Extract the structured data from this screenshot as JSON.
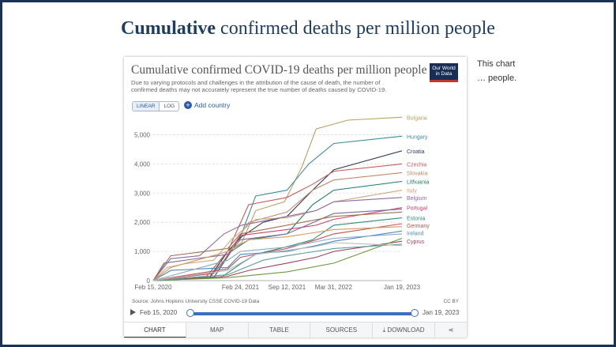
{
  "page": {
    "title_bold": "Cumulative",
    "title_rest": " confirmed deaths per million people",
    "side_text": "This chart … people."
  },
  "card": {
    "title": "Cumulative confirmed COVID-19 deaths per million people",
    "subtitle": "Due to varying protocols and challenges in the attribution of the cause of death, the number of confirmed deaths may not accurately represent the true number of deaths caused by COVID-19.",
    "logo": "Our World in Data",
    "scale_linear": "LINEAR",
    "scale_log": "LOG",
    "add_country": "Add country",
    "source": "Source: Johns Hopkins University CSSE COVID-19 Data",
    "license": "CC BY",
    "timeline_start": "Feb 15, 2020",
    "timeline_end": "Jan 19, 2023",
    "tabs": [
      "CHART",
      "MAP",
      "TABLE",
      "SOURCES",
      "DOWNLOAD",
      "share"
    ]
  },
  "colors": {
    "accent": "#3b6fc4",
    "title": "#1d3d63",
    "frame": "#1c3158"
  },
  "chart_data": {
    "type": "line",
    "title": "Cumulative confirmed COVID-19 deaths per million people",
    "xlabel": "",
    "ylabel": "",
    "ylim": [
      0,
      5500
    ],
    "yticks": [
      0,
      1000,
      2000,
      3000,
      4000,
      5000
    ],
    "ytick_labels": [
      "0",
      "1,000",
      "2,000",
      "3,000",
      "4,000",
      "5,000"
    ],
    "xlim": [
      "2020-02-15",
      "2023-01-19"
    ],
    "xticks": [
      "2020-02-15",
      "2021-02-24",
      "2021-09-12",
      "2022-03-31",
      "2023-01-19"
    ],
    "xtick_labels": [
      "Feb 15, 2020",
      "Feb 24, 2021",
      "Sep 12, 2021",
      "Mar 31, 2022",
      "Jan 19, 2023"
    ],
    "grid": true,
    "series": [
      {
        "name": "Bulgaria",
        "color": "#b8a25e",
        "points": [
          [
            "2020-02-15",
            0
          ],
          [
            "2020-10-15",
            150
          ],
          [
            "2020-12-31",
            1000
          ],
          [
            "2021-03-01",
            1300
          ],
          [
            "2021-05-01",
            2400
          ],
          [
            "2021-09-01",
            2700
          ],
          [
            "2021-11-15",
            3900
          ],
          [
            "2022-01-15",
            5200
          ],
          [
            "2022-06-01",
            5500
          ],
          [
            "2023-01-19",
            5600
          ]
        ]
      },
      {
        "name": "Hungary",
        "color": "#3b8d9b",
        "points": [
          [
            "2020-02-15",
            0
          ],
          [
            "2020-10-01",
            150
          ],
          [
            "2020-12-31",
            1000
          ],
          [
            "2021-02-24",
            1500
          ],
          [
            "2021-04-30",
            2900
          ],
          [
            "2021-09-12",
            3100
          ],
          [
            "2021-12-15",
            4000
          ],
          [
            "2022-04-01",
            4700
          ],
          [
            "2023-01-19",
            4950
          ]
        ]
      },
      {
        "name": "Croatia",
        "color": "#2c3e50",
        "points": [
          [
            "2020-02-15",
            0
          ],
          [
            "2020-10-15",
            100
          ],
          [
            "2020-12-31",
            1000
          ],
          [
            "2021-03-01",
            1500
          ],
          [
            "2021-06-01",
            2000
          ],
          [
            "2021-09-12",
            2200
          ],
          [
            "2021-12-31",
            3100
          ],
          [
            "2022-04-01",
            3800
          ],
          [
            "2023-01-19",
            4450
          ]
        ]
      },
      {
        "name": "Czechia",
        "color": "#c65b5b",
        "points": [
          [
            "2020-02-15",
            0
          ],
          [
            "2020-10-01",
            150
          ],
          [
            "2020-12-31",
            1000
          ],
          [
            "2021-03-31",
            2600
          ],
          [
            "2021-09-12",
            2850
          ],
          [
            "2021-12-31",
            3300
          ],
          [
            "2022-04-01",
            3750
          ],
          [
            "2023-01-19",
            4000
          ]
        ]
      },
      {
        "name": "Slovakia",
        "color": "#c4896d",
        "points": [
          [
            "2020-02-15",
            0
          ],
          [
            "2020-11-01",
            100
          ],
          [
            "2021-02-01",
            1300
          ],
          [
            "2021-04-01",
            2000
          ],
          [
            "2021-09-12",
            2350
          ],
          [
            "2021-12-31",
            3100
          ],
          [
            "2022-04-01",
            3450
          ],
          [
            "2023-01-19",
            3700
          ]
        ]
      },
      {
        "name": "Lithuania",
        "color": "#1f7a6b",
        "points": [
          [
            "2020-02-15",
            0
          ],
          [
            "2020-11-01",
            100
          ],
          [
            "2021-01-15",
            1000
          ],
          [
            "2021-04-01",
            1400
          ],
          [
            "2021-09-12",
            1600
          ],
          [
            "2021-12-31",
            2600
          ],
          [
            "2022-04-01",
            3100
          ],
          [
            "2023-01-19",
            3400
          ]
        ]
      },
      {
        "name": "Italy",
        "color": "#d0a87a",
        "points": [
          [
            "2020-02-15",
            0
          ],
          [
            "2020-04-15",
            450
          ],
          [
            "2020-07-01",
            580
          ],
          [
            "2020-11-01",
            700
          ],
          [
            "2021-01-15",
            1400
          ],
          [
            "2021-05-01",
            2100
          ],
          [
            "2021-09-12",
            2150
          ],
          [
            "2022-01-15",
            2400
          ],
          [
            "2022-04-01",
            2700
          ],
          [
            "2023-01-19",
            3100
          ]
        ]
      },
      {
        "name": "Belgium",
        "color": "#8e6aa3",
        "points": [
          [
            "2020-02-15",
            0
          ],
          [
            "2020-04-30",
            750
          ],
          [
            "2020-09-01",
            850
          ],
          [
            "2020-12-15",
            1600
          ],
          [
            "2021-03-01",
            1900
          ],
          [
            "2021-09-12",
            2200
          ],
          [
            "2022-01-15",
            2400
          ],
          [
            "2022-04-01",
            2700
          ],
          [
            "2023-01-19",
            2850
          ]
        ]
      },
      {
        "name": "Portugal",
        "color": "#c9466a",
        "points": [
          [
            "2020-02-15",
            0
          ],
          [
            "2020-11-01",
            250
          ],
          [
            "2021-01-15",
            1000
          ],
          [
            "2021-02-24",
            1550
          ],
          [
            "2021-09-12",
            1750
          ],
          [
            "2022-01-15",
            1900
          ],
          [
            "2022-04-01",
            2100
          ],
          [
            "2023-01-19",
            2500
          ]
        ]
      },
      {
        "name": "Estonia",
        "color": "#2f8f7a",
        "points": [
          [
            "2020-02-15",
            0
          ],
          [
            "2020-12-01",
            100
          ],
          [
            "2021-03-01",
            600
          ],
          [
            "2021-05-01",
            900
          ],
          [
            "2021-10-01",
            1200
          ],
          [
            "2021-12-31",
            1400
          ],
          [
            "2022-04-01",
            1900
          ],
          [
            "2023-01-19",
            2150
          ]
        ]
      },
      {
        "name": "Germany",
        "color": "#c0524e",
        "points": [
          [
            "2020-02-15",
            0
          ],
          [
            "2020-04-30",
            100
          ],
          [
            "2020-12-31",
            400
          ],
          [
            "2021-02-24",
            800
          ],
          [
            "2021-09-12",
            1100
          ],
          [
            "2022-01-15",
            1400
          ],
          [
            "2022-04-01",
            1600
          ],
          [
            "2023-01-19",
            1950
          ]
        ]
      },
      {
        "name": "Ireland",
        "color": "#4b8ac0",
        "points": [
          [
            "2020-02-15",
            0
          ],
          [
            "2020-05-01",
            350
          ],
          [
            "2020-12-31",
            450
          ],
          [
            "2021-02-24",
            900
          ],
          [
            "2021-09-12",
            1000
          ],
          [
            "2022-01-15",
            1200
          ],
          [
            "2022-04-01",
            1350
          ],
          [
            "2023-01-19",
            1700
          ]
        ]
      },
      {
        "name": "Cyprus",
        "color": "#a0415a",
        "points": [
          [
            "2020-02-15",
            0
          ],
          [
            "2020-12-31",
            150
          ],
          [
            "2021-04-01",
            350
          ],
          [
            "2021-09-12",
            600
          ],
          [
            "2022-01-15",
            800
          ],
          [
            "2022-04-01",
            1000
          ],
          [
            "2023-01-19",
            1350
          ]
        ]
      },
      {
        "name": "",
        "color": "#6b9a3b",
        "points": [
          [
            "2020-02-15",
            0
          ],
          [
            "2020-12-31",
            100
          ],
          [
            "2021-09-12",
            300
          ],
          [
            "2022-04-01",
            600
          ],
          [
            "2023-01-19",
            1450
          ]
        ]
      },
      {
        "name": "",
        "color": "#7a6c9e",
        "points": [
          [
            "2020-02-15",
            0
          ],
          [
            "2020-04-01",
            600
          ],
          [
            "2020-12-31",
            900
          ],
          [
            "2021-02-24",
            1400
          ],
          [
            "2021-09-12",
            1600
          ],
          [
            "2022-04-01",
            2300
          ],
          [
            "2023-01-19",
            2450
          ]
        ]
      },
      {
        "name": "",
        "color": "#a2704d",
        "points": [
          [
            "2020-02-15",
            0
          ],
          [
            "2020-04-30",
            850
          ],
          [
            "2020-12-31",
            1100
          ],
          [
            "2021-02-24",
            1600
          ],
          [
            "2021-09-12",
            1900
          ],
          [
            "2022-04-01",
            2200
          ],
          [
            "2023-01-19",
            2350
          ]
        ]
      },
      {
        "name": "",
        "color": "#8aa6c4",
        "points": [
          [
            "2020-02-15",
            0
          ],
          [
            "2020-12-31",
            700
          ],
          [
            "2021-02-24",
            1000
          ],
          [
            "2021-09-12",
            1150
          ],
          [
            "2022-04-01",
            1450
          ],
          [
            "2023-01-19",
            1600
          ]
        ]
      },
      {
        "name": "",
        "color": "#d79a5f",
        "points": [
          [
            "2020-02-15",
            0
          ],
          [
            "2020-05-01",
            450
          ],
          [
            "2020-12-31",
            1000
          ],
          [
            "2021-04-01",
            1400
          ],
          [
            "2021-09-12",
            1500
          ],
          [
            "2022-04-01",
            1750
          ],
          [
            "2023-01-19",
            1850
          ]
        ]
      },
      {
        "name": "",
        "color": "#5e9e9e",
        "points": [
          [
            "2020-02-15",
            0
          ],
          [
            "2020-12-31",
            200
          ],
          [
            "2021-06-01",
            700
          ],
          [
            "2021-09-12",
            850
          ],
          [
            "2022-04-01",
            1100
          ],
          [
            "2023-01-19",
            1250
          ]
        ]
      },
      {
        "name": "",
        "color": "#b7b7b7",
        "points": [
          [
            "2020-02-15",
            0
          ],
          [
            "2020-12-31",
            350
          ],
          [
            "2021-05-01",
            900
          ],
          [
            "2021-12-31",
            1150
          ],
          [
            "2022-04-01",
            1300
          ],
          [
            "2023-01-19",
            1200
          ]
        ]
      }
    ]
  }
}
